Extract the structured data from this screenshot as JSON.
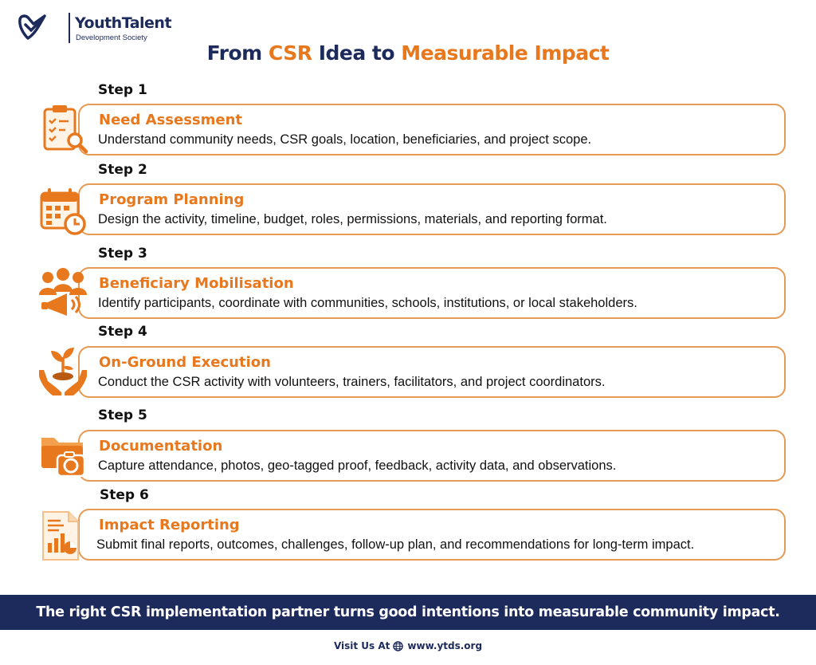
{
  "logo": {
    "brand": "YouthTalent",
    "subtitle": "Development Society",
    "icon": "heart-check-icon"
  },
  "title": {
    "part1": "From ",
    "part2": "CSR",
    "part3": " Idea to ",
    "part4": "Measurable Impact"
  },
  "steps": [
    {
      "label": "Step 1",
      "title": "Need Assessment",
      "description": "Understand community needs, CSR goals, location, beneficiaries, and project scope.",
      "icon": "clipboard-search-icon"
    },
    {
      "label": "Step 2",
      "title": "Program Planning",
      "description": "Design the activity, timeline, budget, roles, permissions, materials, and reporting format.",
      "icon": "calendar-clock-icon"
    },
    {
      "label": "Step 3",
      "title": "Beneficiary Mobilisation",
      "description": "Identify participants, coordinate with communities, schools, institutions, or local stakeholders.",
      "icon": "people-megaphone-icon"
    },
    {
      "label": "Step 4",
      "title": "On-Ground Execution",
      "description": "Conduct the CSR activity with volunteers, trainers, facilitators, and project coordinators.",
      "icon": "hands-plant-icon"
    },
    {
      "label": "Step 5",
      "title": "Documentation",
      "description": "Capture attendance, photos, geo-tagged proof, feedback, activity data, and observations.",
      "icon": "folder-camera-icon"
    },
    {
      "label": "Step 6",
      "title": "Impact Reporting",
      "description": "Submit final reports, outcomes, challenges, follow-up plan, and recommendations for long-term impact.",
      "icon": "report-chart-icon"
    }
  ],
  "banner": "The right CSR implementation partner turns good intentions into measurable community impact.",
  "footer": {
    "visit_label": "Visit Us At",
    "url": "www.ytds.org",
    "icon": "globe-icon"
  },
  "colors": {
    "navy": "#1d2a5c",
    "orange": "#e8781e",
    "border": "#e59a55"
  }
}
